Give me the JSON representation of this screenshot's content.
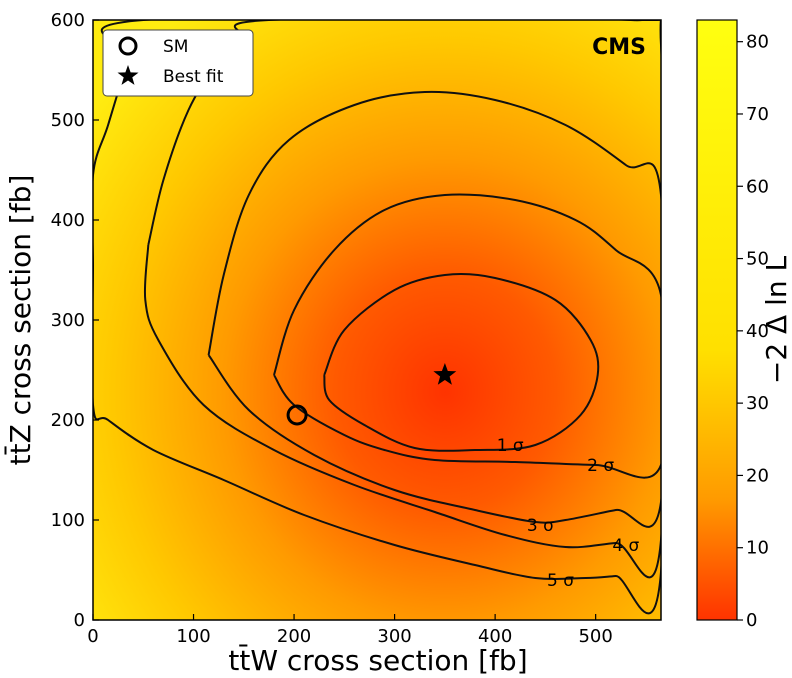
{
  "chart_data": {
    "type": "contour",
    "experiment_label": "CMS",
    "xlabel": "tt̄W cross section [fb]",
    "ylabel": "tt̄Z cross section [fb]",
    "xlim": [
      0,
      565
    ],
    "ylim": [
      0,
      600
    ],
    "xticks": [
      0,
      100,
      200,
      300,
      400,
      500
    ],
    "yticks": [
      0,
      100,
      200,
      300,
      400,
      500,
      600
    ],
    "colorbar": {
      "label": "−2 Δ ln L",
      "range": [
        0,
        83
      ],
      "ticks": [
        0,
        10,
        20,
        30,
        40,
        50,
        60,
        70,
        80
      ],
      "colors": [
        "#ff3300",
        "#ff9a00",
        "#ffe000",
        "#ffff10"
      ]
    },
    "best_fit": {
      "x": 350,
      "y": 245
    },
    "sm": {
      "x": 203,
      "y": 205
    },
    "legend": [
      {
        "marker": "circle",
        "label": "SM"
      },
      {
        "marker": "star",
        "label": "Best fit"
      }
    ],
    "contours": [
      {
        "label": "1 σ",
        "label_pos": {
          "x": 415,
          "y": 175
        },
        "points": [
          [
            230,
            245
          ],
          [
            250,
            290
          ],
          [
            300,
            330
          ],
          [
            350,
            345
          ],
          [
            400,
            342
          ],
          [
            460,
            320
          ],
          [
            495,
            280
          ],
          [
            502,
            245
          ],
          [
            485,
            205
          ],
          [
            440,
            175
          ],
          [
            380,
            170
          ],
          [
            320,
            172
          ],
          [
            270,
            195
          ],
          [
            235,
            220
          ],
          [
            230,
            245
          ]
        ]
      },
      {
        "label": "2 σ",
        "label_pos": {
          "x": 505,
          "y": 155
        },
        "points": [
          [
            180,
            245
          ],
          [
            200,
            310
          ],
          [
            240,
            370
          ],
          [
            290,
            410
          ],
          [
            350,
            425
          ],
          [
            420,
            420
          ],
          [
            480,
            400
          ],
          [
            520,
            370
          ],
          [
            565,
            325
          ],
          [
            565,
            155
          ],
          [
            500,
            155
          ],
          [
            420,
            158
          ],
          [
            340,
            160
          ],
          [
            290,
            170
          ],
          [
            250,
            185
          ],
          [
            200,
            215
          ],
          [
            180,
            245
          ]
        ]
      },
      {
        "label": "3 σ",
        "label_pos": {
          "x": 445,
          "y": 95
        },
        "points": [
          [
            115,
            265
          ],
          [
            130,
            345
          ],
          [
            155,
            425
          ],
          [
            195,
            480
          ],
          [
            260,
            515
          ],
          [
            330,
            528
          ],
          [
            400,
            520
          ],
          [
            470,
            495
          ],
          [
            530,
            455
          ],
          [
            565,
            425
          ],
          [
            565,
            118
          ],
          [
            520,
            110
          ],
          [
            470,
            100
          ],
          [
            440,
            98
          ],
          [
            380,
            110
          ],
          [
            300,
            130
          ],
          [
            220,
            165
          ],
          [
            155,
            210
          ],
          [
            115,
            265
          ]
        ]
      },
      {
        "label": "4 σ",
        "label_pos": {
          "x": 530,
          "y": 75
        },
        "points": [
          [
            55,
            375
          ],
          [
            70,
            440
          ],
          [
            95,
            510
          ],
          [
            120,
            550
          ],
          [
            150,
            580
          ],
          [
            175,
            600
          ],
          [
            535,
            600
          ],
          [
            565,
            575
          ],
          [
            565,
            80
          ],
          [
            520,
            77
          ],
          [
            470,
            73
          ],
          [
            410,
            85
          ],
          [
            340,
            108
          ],
          [
            260,
            135
          ],
          [
            180,
            170
          ],
          [
            110,
            215
          ],
          [
            65,
            280
          ],
          [
            52,
            320
          ],
          [
            55,
            375
          ]
        ]
      },
      {
        "label": "5 σ",
        "label_pos": {
          "x": 465,
          "y": 40
        },
        "points": [
          [
            0,
            355
          ],
          [
            0,
            445
          ],
          [
            15,
            495
          ],
          [
            35,
            560
          ],
          [
            50,
            600
          ],
          [
            555,
            600
          ],
          [
            565,
            592
          ],
          [
            565,
            48
          ],
          [
            520,
            44
          ],
          [
            490,
            42
          ],
          [
            440,
            42
          ],
          [
            380,
            55
          ],
          [
            300,
            75
          ],
          [
            210,
            105
          ],
          [
            130,
            140
          ],
          [
            60,
            170
          ],
          [
            15,
            200
          ],
          [
            0,
            215
          ],
          [
            0,
            355
          ]
        ]
      }
    ]
  }
}
